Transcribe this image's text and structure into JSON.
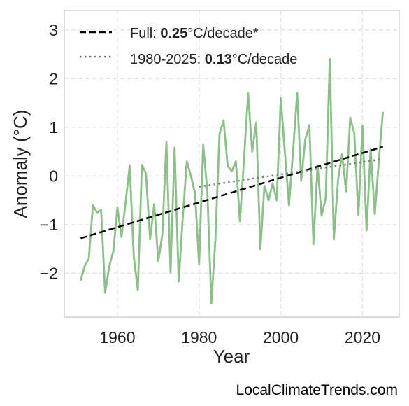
{
  "chart_data": {
    "type": "line",
    "xlabel": "Year",
    "ylabel": "Anomaly (°C)",
    "xlim": [
      1947,
      2029
    ],
    "ylim": [
      -2.9,
      3.4
    ],
    "xticks": [
      1960,
      1980,
      2000,
      2020
    ],
    "yticks": [
      -2,
      -1,
      0,
      1,
      2,
      3
    ],
    "ytick_labels": [
      "−2",
      "−1",
      "0",
      "1",
      "2",
      "3"
    ],
    "grid": true,
    "legend_position": "top-left",
    "series": [
      {
        "line_color": "#8cbf8a",
        "x": [
          1951,
          1952,
          1953,
          1954,
          1955,
          1956,
          1957,
          1958,
          1959,
          1960,
          1961,
          1962,
          1963,
          1964,
          1965,
          1966,
          1967,
          1968,
          1969,
          1970,
          1971,
          1972,
          1973,
          1974,
          1975,
          1976,
          1977,
          1978,
          1979,
          1980,
          1981,
          1982,
          1983,
          1984,
          1985,
          1986,
          1987,
          1988,
          1989,
          1990,
          1991,
          1992,
          1993,
          1994,
          1995,
          1996,
          1997,
          1998,
          1999,
          2000,
          2001,
          2002,
          2003,
          2004,
          2005,
          2006,
          2007,
          2008,
          2009,
          2010,
          2011,
          2012,
          2013,
          2014,
          2015,
          2016,
          2017,
          2018,
          2019,
          2020,
          2021,
          2022,
          2023,
          2024,
          2025
        ],
        "y": [
          -2.15,
          -1.85,
          -1.7,
          -0.6,
          -0.75,
          -0.7,
          -2.4,
          -1.85,
          -1.55,
          -0.65,
          -1.25,
          -0.55,
          0.22,
          -1.65,
          -2.35,
          0.23,
          0.05,
          -1.3,
          -0.58,
          -1.75,
          -1.2,
          0.7,
          -1.98,
          0.58,
          -2.17,
          -0.85,
          0.3,
          0.0,
          -0.35,
          -1.82,
          0.65,
          -0.3,
          -2.62,
          -1.3,
          0.87,
          1.14,
          0.2,
          0.1,
          0.3,
          -0.93,
          0.35,
          1.7,
          0.5,
          1.1,
          -1.5,
          -0.2,
          -0.5,
          -0.15,
          -0.5,
          1.6,
          0.5,
          -0.6,
          0.5,
          1.7,
          -0.1,
          0.75,
          1.05,
          -1.4,
          0.22,
          -0.82,
          -0.45,
          2.4,
          -1.3,
          -0.1,
          0.45,
          -0.32,
          1.2,
          0.88,
          -0.8,
          1.03,
          -1.12,
          0.55,
          -0.78,
          0.3,
          1.32
        ]
      }
    ],
    "trend_full": {
      "x": [
        1951,
        2025
      ],
      "y": [
        -1.28,
        0.6
      ],
      "color": "#000000"
    },
    "trend_recent": {
      "x": [
        1980,
        2025
      ],
      "y": [
        -0.22,
        0.35
      ],
      "color": "#7a7a7a"
    },
    "legend": [
      {
        "prefix": "Full: ",
        "value": "0.25",
        "suffix": "°C/decade*",
        "style": "dashed",
        "color": "#000000"
      },
      {
        "prefix": "1980-2025: ",
        "value": "0.13",
        "suffix": "°C/decade",
        "style": "dotted",
        "color": "#7a7a7a"
      }
    ]
  },
  "watermark": "LocalClimateTrends.com"
}
